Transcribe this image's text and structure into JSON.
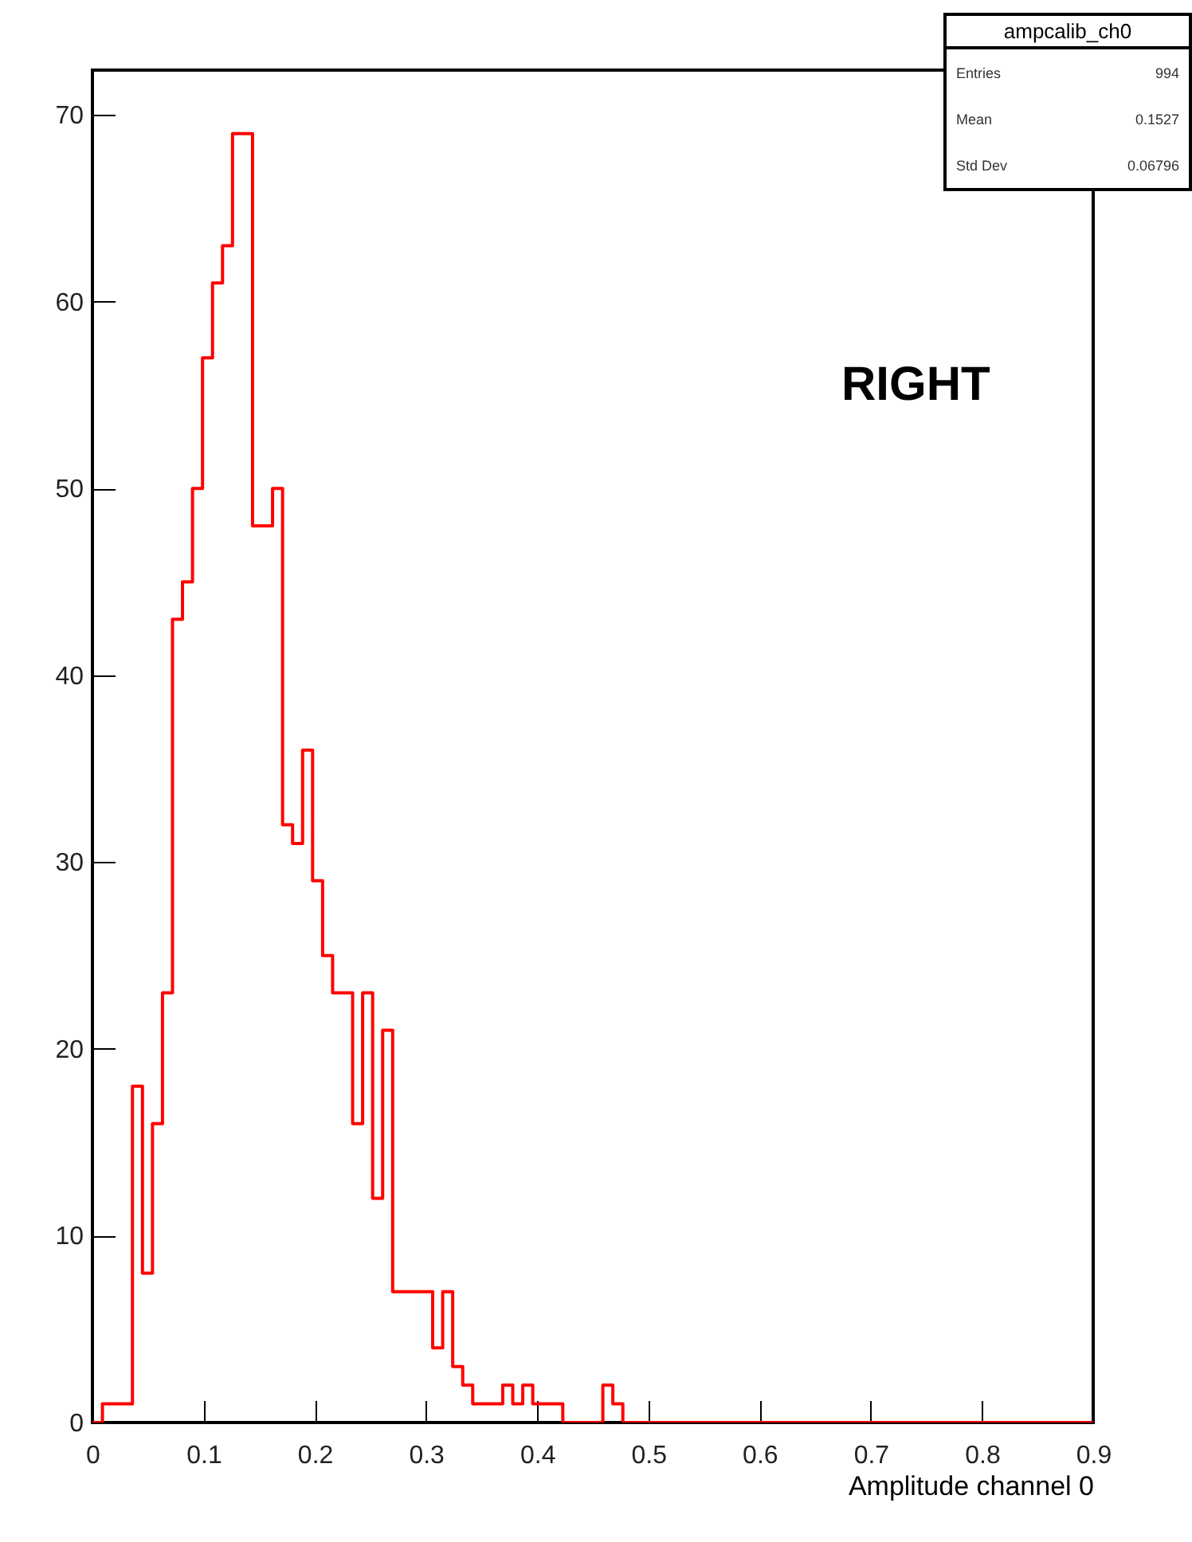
{
  "chart_data": {
    "type": "histogram",
    "bins": [
      0,
      0.009,
      0.018,
      0.027,
      0.036,
      0.045,
      0.054,
      0.063,
      0.072,
      0.081,
      0.09,
      0.099,
      0.108,
      0.117,
      0.126,
      0.135,
      0.144,
      0.153,
      0.162,
      0.171,
      0.18,
      0.189,
      0.198,
      0.207,
      0.216,
      0.225,
      0.234,
      0.243,
      0.252,
      0.261,
      0.27,
      0.279,
      0.288,
      0.297,
      0.306,
      0.315,
      0.324,
      0.333,
      0.342,
      0.351,
      0.36,
      0.369,
      0.378,
      0.387,
      0.396,
      0.405,
      0.414,
      0.423,
      0.432,
      0.441,
      0.45,
      0.459,
      0.468,
      0.477,
      0.486,
      0.495,
      0.504,
      0.513,
      0.522,
      0.531,
      0.54,
      0.549,
      0.558,
      0.567,
      0.576,
      0.585,
      0.594,
      0.603,
      0.612,
      0.621,
      0.63,
      0.639,
      0.648,
      0.657,
      0.666,
      0.675,
      0.684,
      0.693,
      0.702,
      0.711,
      0.72,
      0.729,
      0.738,
      0.747,
      0.756,
      0.765,
      0.774,
      0.783,
      0.792,
      0.801,
      0.81,
      0.819,
      0.828,
      0.837,
      0.846,
      0.855,
      0.864,
      0.873,
      0.882,
      0.891,
      0.9
    ],
    "values": [
      0,
      1,
      1,
      1,
      18,
      8,
      16,
      23,
      43,
      45,
      50,
      57,
      61,
      63,
      69,
      69,
      48,
      48,
      50,
      32,
      31,
      36,
      29,
      25,
      23,
      23,
      16,
      23,
      12,
      21,
      7,
      7,
      7,
      7,
      4,
      7,
      3,
      2,
      1,
      1,
      1,
      2,
      1,
      2,
      1,
      1,
      1,
      0,
      0,
      0,
      0,
      2,
      1,
      0,
      0,
      0,
      0,
      0,
      0,
      0,
      0,
      0,
      0,
      0,
      0,
      0,
      0,
      0,
      0,
      0,
      0,
      0,
      0,
      0,
      0,
      0,
      0,
      0,
      0,
      0,
      0,
      0,
      0,
      0,
      0,
      0,
      0,
      0,
      0,
      0,
      0,
      0,
      0,
      0,
      0,
      0,
      0,
      0,
      0,
      0
    ],
    "color": "#ff0000",
    "xlabel": "Amplitude channel 0",
    "xlim": [
      0,
      0.9
    ],
    "xticks": [
      0,
      0.1,
      0.2,
      0.3,
      0.4,
      0.5,
      0.6,
      0.7,
      0.8,
      0.9
    ],
    "ylim": [
      0,
      72.4
    ],
    "yticks": [
      0,
      10,
      20,
      30,
      40,
      50,
      60,
      70
    ],
    "annotations": [
      "ampcalib_ch0",
      "Entries 994",
      "Mean 0.1527",
      "Std Dev 0.06796",
      "RIGHT"
    ]
  }
}
